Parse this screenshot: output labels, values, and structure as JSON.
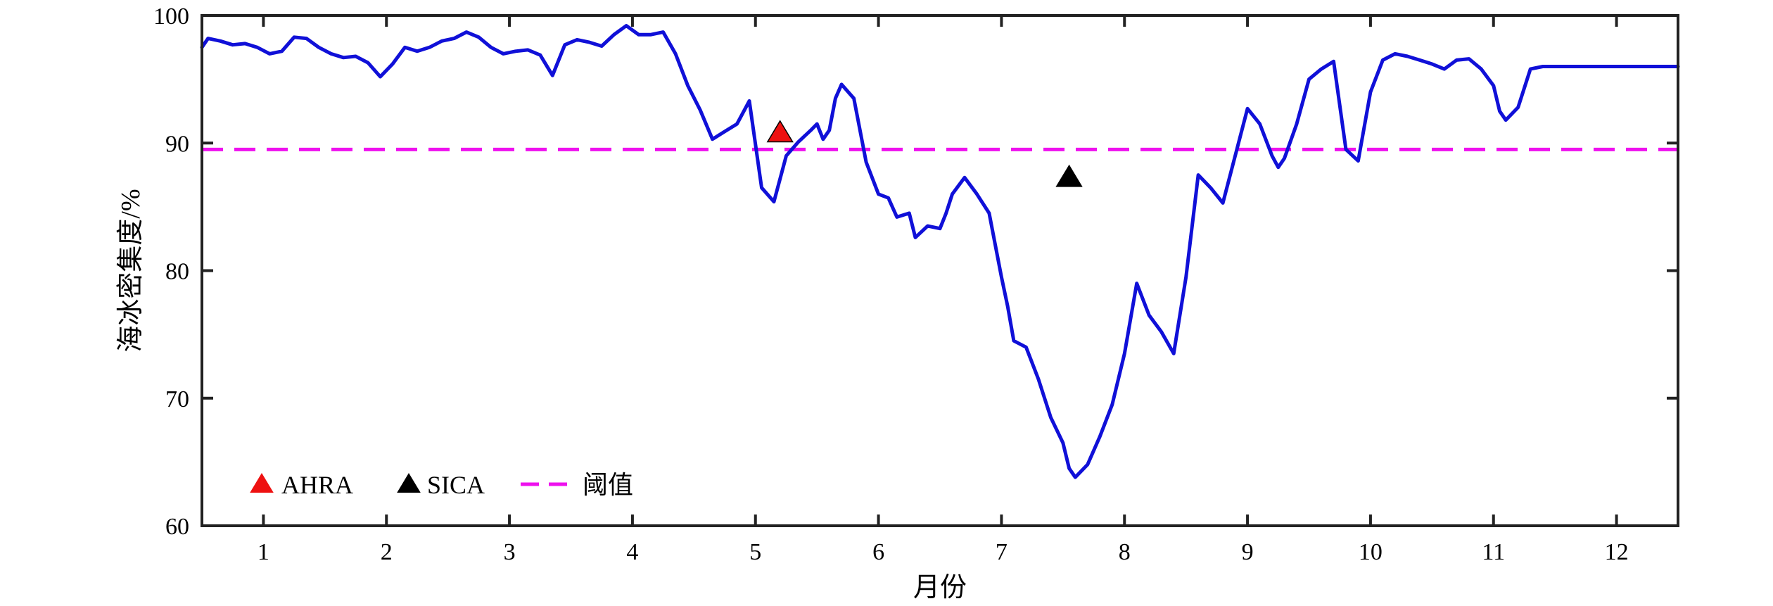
{
  "chart_data": {
    "type": "line",
    "xlabel": "月份",
    "ylabel": "海冰密集度/%",
    "xlim": [
      0.5,
      12.5
    ],
    "ylim": [
      60,
      100
    ],
    "x_ticks": [
      1,
      2,
      3,
      4,
      5,
      6,
      7,
      8,
      9,
      10,
      11,
      12
    ],
    "y_ticks": [
      60,
      70,
      80,
      90,
      100
    ],
    "grid": false,
    "legend_position": "bottom-left",
    "series": [
      {
        "type": "line",
        "color": "#1010d8",
        "x": [
          0.5,
          0.55,
          0.65,
          0.75,
          0.85,
          0.95,
          1.05,
          1.15,
          1.25,
          1.35,
          1.45,
          1.55,
          1.65,
          1.75,
          1.85,
          1.95,
          2.05,
          2.15,
          2.25,
          2.35,
          2.45,
          2.55,
          2.65,
          2.75,
          2.85,
          2.95,
          3.05,
          3.15,
          3.25,
          3.35,
          3.45,
          3.55,
          3.65,
          3.75,
          3.85,
          3.95,
          4.05,
          4.15,
          4.25,
          4.35,
          4.45,
          4.55,
          4.65,
          4.75,
          4.85,
          4.95,
          5.05,
          5.15,
          5.25,
          5.35,
          5.45,
          5.5,
          5.55,
          5.6,
          5.65,
          5.7,
          5.8,
          5.9,
          6.0,
          6.08,
          6.15,
          6.25,
          6.3,
          6.4,
          6.5,
          6.55,
          6.6,
          6.7,
          6.8,
          6.9,
          7.0,
          7.05,
          7.1,
          7.2,
          7.3,
          7.4,
          7.5,
          7.55,
          7.6,
          7.7,
          7.8,
          7.9,
          8.0,
          8.1,
          8.2,
          8.3,
          8.4,
          8.5,
          8.6,
          8.7,
          8.8,
          8.9,
          9.0,
          9.1,
          9.2,
          9.25,
          9.3,
          9.4,
          9.5,
          9.6,
          9.7,
          9.8,
          9.9,
          10.0,
          10.1,
          10.2,
          10.3,
          10.4,
          10.5,
          10.6,
          10.7,
          10.8,
          10.9,
          11.0,
          11.05,
          11.1,
          11.2,
          11.3,
          11.4,
          11.5,
          11.6,
          11.7,
          11.8,
          11.9,
          12.0,
          12.1,
          12.2,
          12.3,
          12.4,
          12.5
        ],
        "y": [
          97.5,
          98.2,
          98.0,
          97.7,
          97.8,
          97.5,
          97.0,
          97.2,
          98.3,
          98.2,
          97.5,
          97.0,
          96.7,
          96.8,
          96.3,
          95.2,
          96.2,
          97.5,
          97.2,
          97.5,
          98.0,
          98.2,
          98.7,
          98.3,
          97.5,
          97.0,
          97.2,
          97.3,
          96.9,
          95.3,
          97.7,
          98.1,
          97.9,
          97.6,
          98.5,
          99.2,
          98.5,
          98.5,
          98.7,
          97.0,
          94.5,
          92.6,
          90.3,
          90.9,
          91.5,
          93.3,
          86.5,
          85.4,
          89.0,
          90.1,
          91.0,
          91.5,
          90.3,
          91.0,
          93.5,
          94.6,
          93.5,
          88.5,
          86.0,
          85.7,
          84.2,
          84.5,
          82.6,
          83.5,
          83.3,
          84.5,
          86.0,
          87.3,
          86.0,
          84.5,
          79.5,
          77.2,
          74.5,
          74.0,
          71.5,
          68.5,
          66.5,
          64.5,
          63.8,
          64.8,
          67.0,
          69.5,
          73.5,
          79.0,
          76.5,
          75.2,
          73.5,
          79.5,
          87.5,
          86.5,
          85.3,
          89.0,
          92.7,
          91.5,
          89.0,
          88.1,
          88.8,
          91.5,
          95.0,
          95.8,
          96.4,
          89.5,
          88.6,
          94.0,
          96.5,
          97.0,
          96.8,
          96.5,
          96.2,
          95.8,
          96.5,
          96.6,
          95.8,
          94.5,
          92.5,
          91.8,
          92.8,
          95.8,
          96.0,
          96.0,
          96.0,
          96.0,
          96.0,
          96.0,
          96.0,
          96.0,
          96.0,
          96.0,
          96.0,
          96.0
        ]
      }
    ],
    "threshold": {
      "value": 89.5,
      "color": "#ee11ee",
      "style": "dashed"
    },
    "markers": [
      {
        "name": "AHRA",
        "x": 5.2,
        "y": 90.8,
        "color": "#ee1111"
      },
      {
        "name": "SICA",
        "x": 7.55,
        "y": 87.3,
        "color": "#000000"
      }
    ],
    "legend": [
      {
        "label": "AHRA",
        "kind": "triangle",
        "color": "#ee1111"
      },
      {
        "label": "SICA",
        "kind": "triangle",
        "color": "#000000"
      },
      {
        "label": "阈值",
        "kind": "dashed-line",
        "color": "#ee11ee"
      }
    ]
  }
}
